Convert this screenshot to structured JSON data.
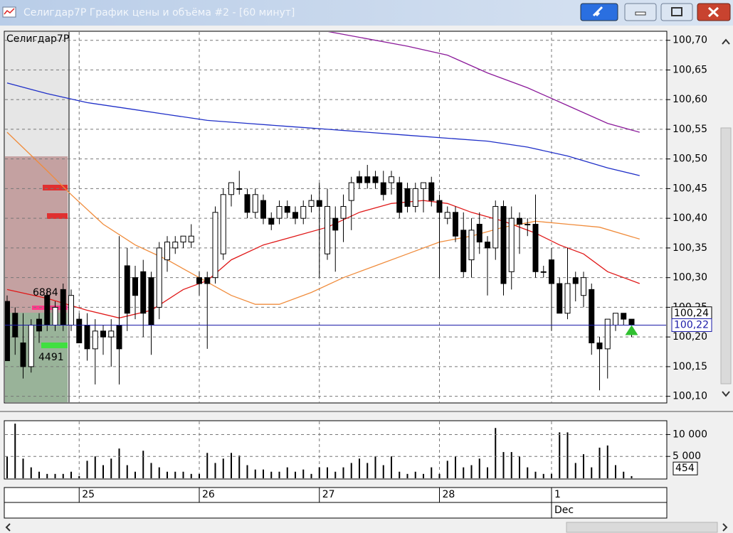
{
  "window": {
    "title": "Селигдар7Р График цены и объёма #2 - [60 минут]"
  },
  "chart_data": [
    {
      "type": "candlestick",
      "title": "Селигдар7Р",
      "categories": [
        null,
        null,
        null,
        null,
        null,
        null,
        null,
        null,
        null,
        "25",
        null,
        null,
        null,
        null,
        null,
        null,
        null,
        null,
        null,
        null,
        null,
        null,
        null,
        null,
        "26",
        null,
        null,
        null,
        null,
        null,
        null,
        null,
        null,
        null,
        null,
        null,
        null,
        null,
        null,
        "27",
        null,
        null,
        null,
        null,
        null,
        null,
        null,
        null,
        null,
        null,
        null,
        null,
        null,
        null,
        "28",
        null,
        null,
        null,
        null,
        null,
        null,
        null,
        null,
        null,
        null,
        null,
        null,
        null,
        "1",
        null,
        null,
        null,
        null,
        null,
        null,
        null,
        null,
        null,
        null
      ],
      "month_label": "Dec",
      "month_label_at": 68,
      "open": [
        100.26,
        100.24,
        100.19,
        100.15,
        100.23,
        100.27,
        100.22,
        100.28,
        100.22,
        100.23,
        100.22,
        100.18,
        100.21,
        100.2,
        100.22,
        100.32,
        100.3,
        100.31,
        100.3,
        100.25,
        100.33,
        100.35,
        100.36,
        100.36,
        100.3,
        100.3,
        100.3,
        100.34,
        100.44,
        100.45,
        100.44,
        100.41,
        100.43,
        100.4,
        100.4,
        100.42,
        100.41,
        100.4,
        100.42,
        100.43,
        100.34,
        100.4,
        100.4,
        100.43,
        100.47,
        100.47,
        100.47,
        100.46,
        100.46,
        100.46,
        100.45,
        100.42,
        100.45,
        100.46,
        100.43,
        100.4,
        100.41,
        100.38,
        100.33,
        100.39,
        100.36,
        100.35,
        100.42,
        100.31,
        100.4,
        100.39,
        100.39,
        100.31,
        100.33,
        100.29,
        100.24,
        100.3,
        100.27,
        100.28,
        100.19,
        100.18,
        100.22,
        100.24,
        100.23
      ],
      "high": [
        100.27,
        100.25,
        100.24,
        100.23,
        100.24,
        100.28,
        100.26,
        100.29,
        100.28,
        100.24,
        100.24,
        100.23,
        100.22,
        100.23,
        100.37,
        100.35,
        100.32,
        100.33,
        100.31,
        100.36,
        100.37,
        100.37,
        100.37,
        100.39,
        100.31,
        100.31,
        100.42,
        100.45,
        100.46,
        100.48,
        100.45,
        100.45,
        100.44,
        100.41,
        100.43,
        100.43,
        100.42,
        100.43,
        100.44,
        100.46,
        100.45,
        100.42,
        100.44,
        100.47,
        100.48,
        100.49,
        100.48,
        100.48,
        100.48,
        100.47,
        100.46,
        100.46,
        100.46,
        100.47,
        100.44,
        100.42,
        100.42,
        100.41,
        100.4,
        100.41,
        100.37,
        100.43,
        100.43,
        100.42,
        100.41,
        100.4,
        100.44,
        100.32,
        100.35,
        100.3,
        100.35,
        100.31,
        100.31,
        100.29,
        100.2,
        100.23,
        100.24,
        100.24,
        100.23
      ],
      "low": [
        100.16,
        100.17,
        100.13,
        100.14,
        100.19,
        100.21,
        100.21,
        100.21,
        100.21,
        100.19,
        100.16,
        100.12,
        100.17,
        100.15,
        100.12,
        100.21,
        100.23,
        100.2,
        100.17,
        100.23,
        100.31,
        100.34,
        100.35,
        100.35,
        100.27,
        100.18,
        100.29,
        100.33,
        100.42,
        100.44,
        100.4,
        100.4,
        100.39,
        100.38,
        100.39,
        100.4,
        100.39,
        100.39,
        100.41,
        100.3,
        100.33,
        100.31,
        100.36,
        100.38,
        100.45,
        100.45,
        100.45,
        100.43,
        100.44,
        100.4,
        100.41,
        100.41,
        100.41,
        100.42,
        100.3,
        100.39,
        100.36,
        100.3,
        100.3,
        100.34,
        100.27,
        100.33,
        100.27,
        100.28,
        100.34,
        100.37,
        100.3,
        100.3,
        100.21,
        100.24,
        100.23,
        100.26,
        100.25,
        100.17,
        100.11,
        100.13,
        100.21,
        100.22,
        100.2
      ],
      "close": [
        100.16,
        100.2,
        100.15,
        100.22,
        100.21,
        100.22,
        100.25,
        100.22,
        100.27,
        100.19,
        100.18,
        100.21,
        100.2,
        100.21,
        100.18,
        100.24,
        100.27,
        100.24,
        100.22,
        100.35,
        100.36,
        100.36,
        100.37,
        100.37,
        100.29,
        100.29,
        100.41,
        100.44,
        100.46,
        100.45,
        100.41,
        100.44,
        100.4,
        100.39,
        100.42,
        100.41,
        100.4,
        100.42,
        100.43,
        100.42,
        100.42,
        100.38,
        100.42,
        100.46,
        100.46,
        100.46,
        100.46,
        100.44,
        100.47,
        100.41,
        100.42,
        100.45,
        100.46,
        100.43,
        100.41,
        100.41,
        100.37,
        100.31,
        100.38,
        100.36,
        100.35,
        100.42,
        100.29,
        100.4,
        100.39,
        100.39,
        100.31,
        100.31,
        100.29,
        100.24,
        100.29,
        100.29,
        100.3,
        100.19,
        100.18,
        100.23,
        100.24,
        100.23,
        100.22
      ],
      "series": [
        {
          "name": "MA purple",
          "color": "#8b1a9a",
          "x": [
            40,
            50,
            55,
            60,
            65,
            70,
            75,
            79
          ],
          "values": [
            100.715,
            100.69,
            100.675,
            100.645,
            100.62,
            100.59,
            100.56,
            100.545
          ]
        },
        {
          "name": "MA blue",
          "color": "#1f2fc8",
          "x": [
            0,
            5,
            10,
            15,
            20,
            25,
            30,
            35,
            40,
            45,
            50,
            55,
            60,
            65,
            70,
            75,
            79
          ],
          "values": [
            100.628,
            100.61,
            100.595,
            100.585,
            100.575,
            100.565,
            100.56,
            100.555,
            100.55,
            100.545,
            100.54,
            100.535,
            100.53,
            100.52,
            100.505,
            100.485,
            100.472
          ]
        },
        {
          "name": "MA red",
          "color": "#e01818",
          "x": [
            0,
            5,
            10,
            14,
            18,
            22,
            25,
            28,
            32,
            36,
            40,
            44,
            48,
            52,
            55,
            58,
            62,
            66,
            69,
            72,
            75,
            79
          ],
          "values": [
            100.28,
            100.265,
            100.245,
            100.232,
            100.245,
            100.28,
            100.295,
            100.33,
            100.355,
            100.37,
            100.385,
            100.41,
            100.425,
            100.43,
            100.425,
            100.41,
            100.395,
            100.375,
            100.355,
            100.34,
            100.31,
            100.29
          ]
        },
        {
          "name": "MA orange",
          "color": "#f08c3c",
          "x": [
            0,
            5,
            8,
            12,
            16,
            20,
            24,
            28,
            31,
            34,
            38,
            42,
            46,
            50,
            54,
            58,
            62,
            66,
            70,
            74,
            79
          ],
          "values": [
            100.545,
            100.48,
            100.44,
            100.39,
            100.355,
            100.33,
            100.3,
            100.27,
            100.255,
            100.255,
            100.275,
            100.3,
            100.32,
            100.34,
            100.36,
            100.37,
            100.385,
            100.395,
            100.39,
            100.385,
            100.365
          ]
        }
      ],
      "ylim": [
        100.09,
        100.714
      ],
      "yticks": [
        {
          "value": 100.1,
          "label": "100,10"
        },
        {
          "value": 100.15,
          "label": "100,15"
        },
        {
          "value": 100.2,
          "label": "100,20"
        },
        {
          "value": 100.25,
          "label": "100,25"
        },
        {
          "value": 100.3,
          "label": "100,30"
        },
        {
          "value": 100.35,
          "label": "100,35"
        },
        {
          "value": 100.4,
          "label": "100,40"
        },
        {
          "value": 100.45,
          "label": "100,45"
        },
        {
          "value": 100.5,
          "label": "100,50"
        },
        {
          "value": 100.55,
          "label": "100,55"
        },
        {
          "value": 100.6,
          "label": "100,60"
        },
        {
          "value": 100.65,
          "label": "100,65"
        },
        {
          "value": 100.7,
          "label": "100,70"
        }
      ],
      "last_price": {
        "value": 100.22,
        "label": "100,22"
      },
      "price_marker": {
        "value": 100.24,
        "label": "100,24"
      },
      "profile_labels": [
        6884,
        4491
      ],
      "grid": true
    },
    {
      "type": "bar",
      "color": "#000000",
      "values": [
        5000,
        12500,
        4500,
        2500,
        1500,
        1000,
        1000,
        1000,
        1500,
        500,
        4000,
        5000,
        3000,
        4500,
        6800,
        3000,
        1500,
        6300,
        3500,
        2500,
        1500,
        1500,
        1500,
        1000,
        1000,
        5800,
        3500,
        4500,
        5800,
        5200,
        3000,
        2000,
        2000,
        1500,
        1500,
        2500,
        1500,
        2000,
        1000,
        2500,
        2500,
        1500,
        2500,
        3500,
        4500,
        3500,
        5000,
        3000,
        5000,
        1500,
        1000,
        1500,
        1000,
        2500,
        1000,
        4000,
        5000,
        2500,
        3000,
        4500,
        2500,
        11500,
        6000,
        6000,
        5000,
        2500,
        1500,
        1000,
        1000,
        10500,
        10500,
        3500,
        5500,
        2500,
        7000,
        7500,
        3000,
        1500,
        500
      ],
      "ylim": [
        0,
        13000
      ],
      "yticks": [
        {
          "value": 5000,
          "label": "5 000"
        },
        {
          "value": 10000,
          "label": "10 000"
        }
      ],
      "last_value": 454,
      "grid": true
    }
  ]
}
